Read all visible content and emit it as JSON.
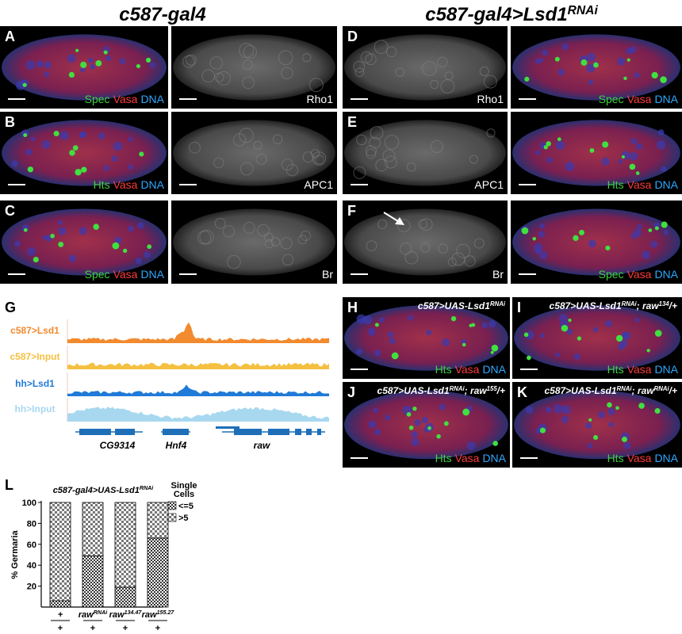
{
  "headers": {
    "left": "c587-gal4",
    "right": {
      "text": "c587-gal4>Lsd1",
      "sup": "RNAi"
    }
  },
  "panels": [
    {
      "letter": "A",
      "images": [
        {
          "labels": [
            {
              "text": "Spec",
              "color": "#3fd23f"
            },
            {
              "text": "Vasa",
              "color": "#ff3b3b"
            },
            {
              "text": "DNA",
              "color": "#2ea8ff"
            }
          ]
        },
        {
          "labels": [
            {
              "text": "Rho1",
              "color": "#ffffff"
            }
          ]
        }
      ]
    },
    {
      "letter": "B",
      "images": [
        {
          "labels": [
            {
              "text": "Hts",
              "color": "#3fd23f"
            },
            {
              "text": "Vasa",
              "color": "#ff3b3b"
            },
            {
              "text": "DNA",
              "color": "#2ea8ff"
            }
          ]
        },
        {
          "labels": [
            {
              "text": "APC1",
              "color": "#ffffff"
            }
          ]
        }
      ]
    },
    {
      "letter": "C",
      "images": [
        {
          "labels": [
            {
              "text": "Spec",
              "color": "#3fd23f"
            },
            {
              "text": "Vasa",
              "color": "#ff3b3b"
            },
            {
              "text": "DNA",
              "color": "#2ea8ff"
            }
          ]
        },
        {
          "labels": [
            {
              "text": "Br",
              "color": "#ffffff"
            }
          ]
        }
      ]
    },
    {
      "letter": "D",
      "images": [
        {
          "labels": [
            {
              "text": "Rho1",
              "color": "#ffffff"
            }
          ]
        },
        {
          "labels": [
            {
              "text": "Spec",
              "color": "#3fd23f"
            },
            {
              "text": "Vasa",
              "color": "#ff3b3b"
            },
            {
              "text": "DNA",
              "color": "#2ea8ff"
            }
          ]
        }
      ]
    },
    {
      "letter": "E",
      "images": [
        {
          "labels": [
            {
              "text": "APC1",
              "color": "#ffffff"
            }
          ]
        },
        {
          "labels": [
            {
              "text": "Hts",
              "color": "#3fd23f"
            },
            {
              "text": "Vasa",
              "color": "#ff3b3b"
            },
            {
              "text": "DNA",
              "color": "#2ea8ff"
            }
          ]
        }
      ]
    },
    {
      "letter": "F",
      "images": [
        {
          "labels": [
            {
              "text": "Br",
              "color": "#ffffff"
            }
          ]
        },
        {
          "labels": [
            {
              "text": "Spec",
              "color": "#3fd23f"
            },
            {
              "text": "Vasa",
              "color": "#ff3b3b"
            },
            {
              "text": "DNA",
              "color": "#2ea8ff"
            }
          ]
        }
      ]
    }
  ],
  "genome": {
    "letter": "G",
    "tracks": [
      {
        "name": "c587>Lsd1",
        "color": "#f28a2e"
      },
      {
        "name": "c587>Input",
        "color": "#f5c040"
      },
      {
        "name": "hh>Lsd1",
        "color": "#1f7ad8"
      },
      {
        "name": "hh>Input",
        "color": "#a8d8f0"
      }
    ],
    "genes": [
      "CG9314",
      "Hnf4",
      "raw"
    ]
  },
  "panels_hk": [
    {
      "letter": "H",
      "title": [
        "c587>UAS-Lsd1",
        "RNAi"
      ],
      "labels": [
        {
          "text": "Hts",
          "color": "#3fd23f"
        },
        {
          "text": "Vasa",
          "color": "#ff3b3b"
        },
        {
          "text": "DNA",
          "color": "#2ea8ff"
        }
      ]
    },
    {
      "letter": "I",
      "title": [
        "c587>UAS-Lsd1",
        "RNAi",
        "; raw",
        "134",
        "/+"
      ],
      "labels": [
        {
          "text": "Hts",
          "color": "#3fd23f"
        },
        {
          "text": "Vasa",
          "color": "#ff3b3b"
        },
        {
          "text": "DNA",
          "color": "#2ea8ff"
        }
      ]
    },
    {
      "letter": "J",
      "title": [
        "c587>UAS-Lsd1",
        "RNAi",
        "; raw",
        "155",
        "/+"
      ],
      "labels": [
        {
          "text": "Hts",
          "color": "#3fd23f"
        },
        {
          "text": "Vasa",
          "color": "#ff3b3b"
        },
        {
          "text": "DNA",
          "color": "#2ea8ff"
        }
      ]
    },
    {
      "letter": "K",
      "title": [
        "c587>UAS-Lsd1",
        "RNAi",
        "; raw",
        "RNAi",
        "/+"
      ],
      "labels": [
        {
          "text": "Hts",
          "color": "#3fd23f"
        },
        {
          "text": "Vasa",
          "color": "#ff3b3b"
        },
        {
          "text": "DNA",
          "color": "#2ea8ff"
        }
      ]
    }
  ],
  "chart_data": {
    "type": "stacked_bar",
    "letter": "L",
    "title": "c587-gal4>UAS-Lsd1",
    "title_sup": "RNAi",
    "y_label": "% Germaria",
    "categories": [
      {
        "top": "+",
        "bottom": "+"
      },
      {
        "top": "raw",
        "sup": "RNAi",
        "bottom": "+"
      },
      {
        "top": "raw",
        "sup": "134.47",
        "bottom": "+"
      },
      {
        "top": "raw",
        "sup": "155.27",
        "bottom": "+"
      }
    ],
    "series": [
      {
        "name": "<=5",
        "color": "#333333",
        "values": [
          6,
          49,
          19,
          66
        ]
      },
      {
        "name": ">5",
        "color": "#777777",
        "values": [
          94,
          51,
          81,
          34
        ]
      }
    ],
    "legend_title": [
      "Single",
      "Cells"
    ],
    "ylim": [
      0,
      100
    ],
    "yticks": [
      20,
      40,
      60,
      80,
      100
    ]
  }
}
